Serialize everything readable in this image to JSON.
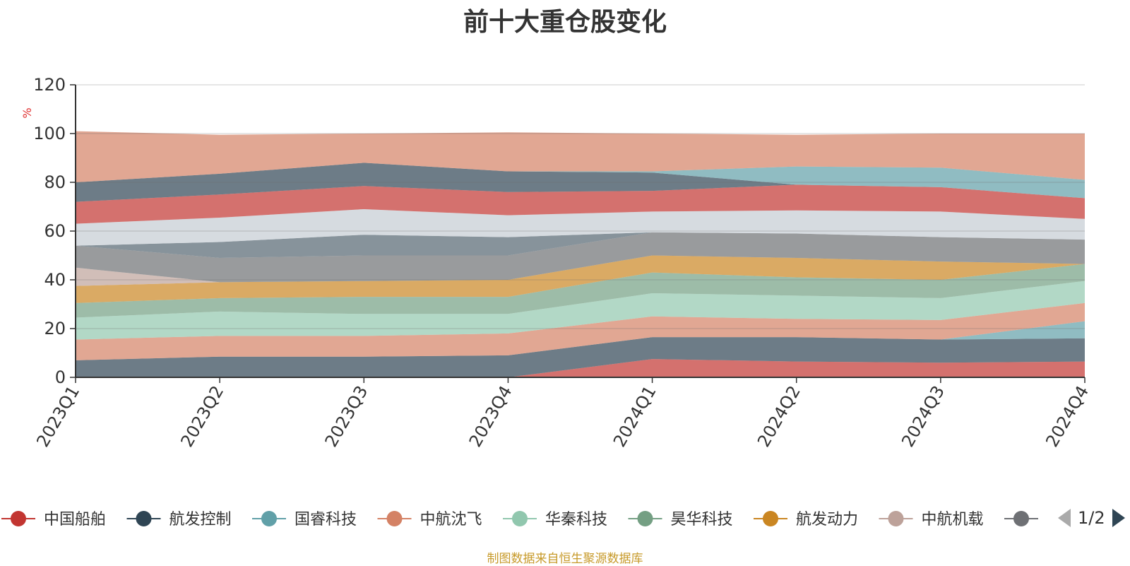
{
  "title": "前十大重仓股变化",
  "footer": "制图数据来自恒生聚源数据库",
  "legend_pager": {
    "text": "1/2",
    "prev_color": "#aaaaaa",
    "next_color": "#2f4554"
  },
  "chart_data": {
    "type": "area",
    "stacked": true,
    "categories": [
      "2023Q1",
      "2023Q2",
      "2023Q3",
      "2023Q4",
      "2024Q1",
      "2024Q2",
      "2024Q3",
      "2024Q4"
    ],
    "ylabel": "%",
    "ylim": [
      0,
      120
    ],
    "yticks": [
      0,
      20,
      40,
      60,
      80,
      100,
      120
    ],
    "grid": true,
    "legend": "bottom",
    "legend_items": [
      {
        "name": "中国船舶",
        "color": "#c23531"
      },
      {
        "name": "航发控制",
        "color": "#2f4554"
      },
      {
        "name": "国睿科技",
        "color": "#61a0a8"
      },
      {
        "name": "中航沈飞",
        "color": "#d48265"
      },
      {
        "name": "华秦科技",
        "color": "#91c7ae"
      },
      {
        "name": "昊华科技",
        "color": "#749f83"
      },
      {
        "name": "航发动力",
        "color": "#ca8622"
      },
      {
        "name": "中航机载",
        "color": "#bda29a"
      },
      {
        "name": "",
        "color": "#6e7074"
      }
    ],
    "layers": [
      {
        "color": "#c23531",
        "values": [
          0,
          0,
          0,
          0,
          7.5,
          6.5,
          6,
          6.5
        ]
      },
      {
        "color": "#2f4554",
        "values": [
          7,
          8.5,
          8.5,
          9,
          9,
          10,
          9.5,
          9.5
        ]
      },
      {
        "color": "#61a0a8",
        "values": [
          0,
          0,
          0,
          0,
          0,
          0,
          0,
          7
        ]
      },
      {
        "color": "#d48265",
        "values": [
          8.5,
          8.5,
          8.5,
          9,
          8.5,
          7.5,
          8,
          7.5
        ]
      },
      {
        "color": "#91c7ae",
        "values": [
          9,
          10,
          9,
          8,
          9.5,
          9.5,
          9,
          9
        ]
      },
      {
        "color": "#749f83",
        "values": [
          6,
          5.5,
          7,
          7,
          8.5,
          7.5,
          7.5,
          7
        ]
      },
      {
        "color": "#ca8622",
        "values": [
          7,
          6.5,
          6.5,
          7,
          7,
          8,
          7.5,
          0
        ]
      },
      {
        "color": "#bda29a",
        "values": [
          7.5,
          0,
          0,
          0,
          0,
          0,
          0,
          0
        ]
      },
      {
        "color": "#6e7074",
        "values": [
          9,
          10,
          10.5,
          10,
          9.5,
          10,
          10,
          10
        ]
      },
      {
        "color": "#546570",
        "values": [
          0,
          6.5,
          8.5,
          7.5,
          0,
          0,
          0,
          0
        ]
      },
      {
        "color": "#c4ccd3",
        "values": [
          9,
          10,
          10.5,
          9,
          8.5,
          9.5,
          10.5,
          8.5
        ]
      },
      {
        "color": "#c23531",
        "values": [
          9,
          9.5,
          9.5,
          9.5,
          8.5,
          10.5,
          10,
          8.5
        ]
      },
      {
        "color": "#2f4554",
        "values": [
          8,
          8.5,
          9.5,
          8.5,
          7.5,
          0,
          0,
          0
        ]
      },
      {
        "color": "#61a0a8",
        "values": [
          0,
          0,
          0,
          0,
          0.5,
          7.5,
          8,
          7.5
        ]
      },
      {
        "color": "#d48265",
        "values": [
          21,
          16,
          12,
          16,
          15.5,
          13,
          14,
          19
        ]
      }
    ]
  }
}
